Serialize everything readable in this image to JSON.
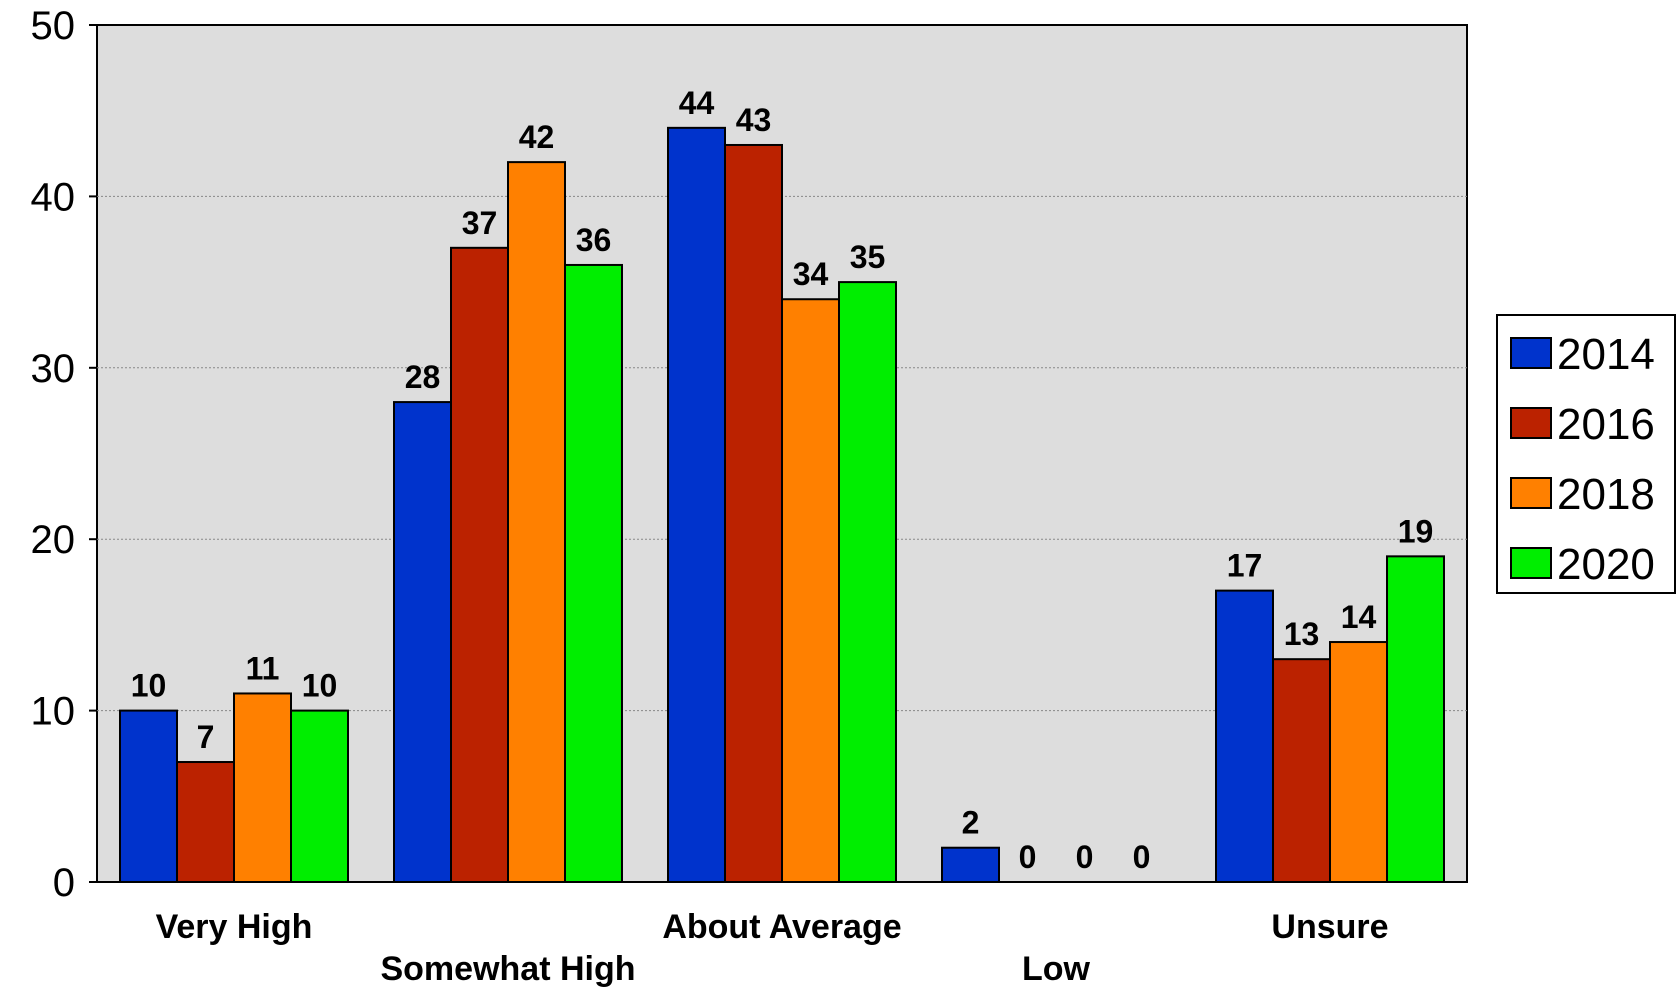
{
  "chart_data": {
    "type": "bar",
    "categories": [
      "Very High",
      "Somewhat High",
      "About Average",
      "Low",
      "Unsure"
    ],
    "series": [
      {
        "name": "2014",
        "color": "#0033cc",
        "values": [
          10,
          28,
          44,
          2,
          17
        ]
      },
      {
        "name": "2016",
        "color": "#bb2200",
        "values": [
          7,
          37,
          43,
          0,
          13
        ]
      },
      {
        "name": "2018",
        "color": "#ff8000",
        "values": [
          11,
          42,
          34,
          0,
          14
        ]
      },
      {
        "name": "2020",
        "color": "#00ee00",
        "values": [
          10,
          36,
          35,
          0,
          19
        ]
      }
    ],
    "yticks": [
      "0",
      "10",
      "20",
      "30",
      "40",
      "50"
    ],
    "ylim": [
      0,
      50
    ],
    "grid": true,
    "legend": "right",
    "plot_background": "#dddddd"
  }
}
